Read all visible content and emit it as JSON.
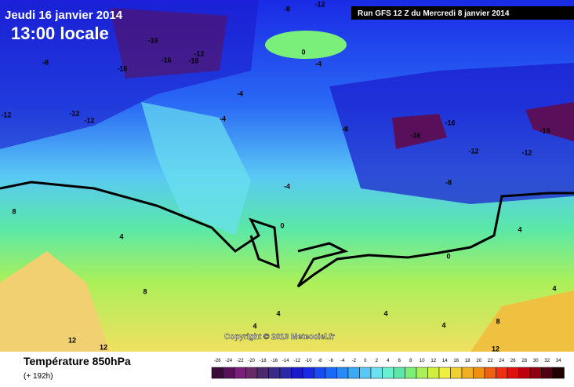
{
  "header": {
    "date": "Jeudi 16 janvier 2014",
    "time": "13:00 locale",
    "run": "Run GFS 12 Z du Mercredi 8 janvier 2014"
  },
  "copyright": "Copyright © 2013 Meteociel.fr",
  "footer": {
    "title": "Température 850hPa",
    "lead": "(+ 192h)"
  },
  "legend": {
    "labels": [
      "-26",
      "-24",
      "-22",
      "-20",
      "-18",
      "-16",
      "-14",
      "-12",
      "-10",
      "-8",
      "-6",
      "-4",
      "-2",
      "0",
      "2",
      "4",
      "6",
      "8",
      "10",
      "12",
      "14",
      "16",
      "18",
      "20",
      "22",
      "24",
      "26",
      "28",
      "30",
      "32",
      "34"
    ],
    "colors": [
      "#3a0a3a",
      "#5a0f5a",
      "#7a1f7a",
      "#6a2a6a",
      "#4a2a6a",
      "#3a2a8a",
      "#2a2aa8",
      "#1a1acc",
      "#1a2ae6",
      "#1a4af5",
      "#1a6af5",
      "#2a8af5",
      "#3aaaf5",
      "#5ac8f5",
      "#6ae0f0",
      "#6af0d0",
      "#5ae8a8",
      "#7af07a",
      "#aaf05a",
      "#d0f040",
      "#f0f040",
      "#f0d030",
      "#f0b020",
      "#f09010",
      "#f06010",
      "#f03010",
      "#e01010",
      "#c00010",
      "#900010",
      "#500010",
      "#200000"
    ]
  },
  "contour_labels": [
    "-16",
    "-16",
    "-16",
    "-12",
    "-16",
    "-8",
    "-8",
    "-12",
    "0",
    "-4",
    "-12",
    "-12",
    "-12",
    "-4",
    "-4",
    "-8",
    "-16",
    "-16",
    "-16",
    "-12",
    "-12",
    "-8",
    "-4",
    "0",
    "4",
    "8",
    "12",
    "12",
    "4",
    "4",
    "4",
    "4",
    "8",
    "4",
    "4",
    "0",
    "12",
    "8"
  ]
}
